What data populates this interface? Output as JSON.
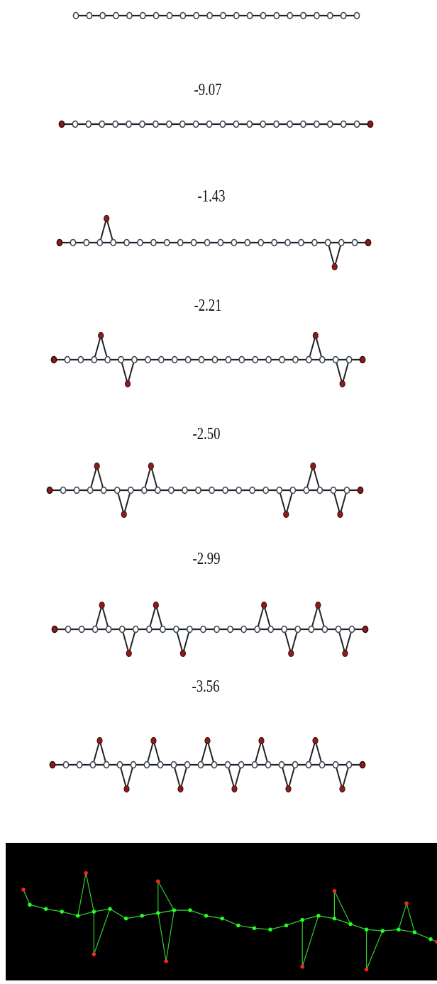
{
  "colors": {
    "chain_line": "#222222",
    "node_fill": "#ffffff",
    "node_stroke": "#3d4a5a",
    "defect_node": "#8a1c1c",
    "sim_background": "#000000",
    "sim_line": "#33cc33",
    "sim_node_green": "#22ff22",
    "sim_node_red": "#ff2222"
  },
  "chains": [
    {
      "energy": "",
      "nodes": 22,
      "red_ends": false,
      "defects_up": [],
      "defects_down": []
    },
    {
      "energy": "-9.07",
      "nodes": 24,
      "red_ends": true,
      "defects_up": [],
      "defects_down": []
    },
    {
      "energy": "-1.43",
      "nodes": 24,
      "red_ends": true,
      "defects_up": [
        3
      ],
      "defects_down": [
        20
      ]
    },
    {
      "energy": "-2.21",
      "nodes": 24,
      "red_ends": true,
      "defects_up": [
        3,
        19
      ],
      "defects_down": [
        5,
        21
      ]
    },
    {
      "energy": "-2.50",
      "nodes": 24,
      "red_ends": true,
      "defects_up": [
        3,
        7,
        19
      ],
      "defects_down": [
        5,
        17,
        21
      ]
    },
    {
      "energy": "-2.99",
      "nodes": 24,
      "red_ends": true,
      "defects_up": [
        3,
        7,
        15,
        19
      ],
      "defects_down": [
        5,
        9,
        17,
        21
      ]
    },
    {
      "energy": "-3.56",
      "nodes": 24,
      "red_ends": true,
      "defects_up": [
        3,
        7,
        11,
        15,
        19
      ],
      "defects_down": [
        5,
        9,
        13,
        17,
        21
      ]
    }
  ],
  "simulation": {
    "chain": [
      [
        0,
        0.55
      ],
      [
        1,
        0.52
      ],
      [
        2,
        0.5
      ],
      [
        3,
        0.47
      ],
      [
        4,
        0.5
      ],
      [
        5,
        0.52
      ],
      [
        6,
        0.45
      ],
      [
        7,
        0.47
      ],
      [
        8,
        0.49
      ],
      [
        9,
        0.51
      ],
      [
        10,
        0.51
      ],
      [
        11,
        0.47
      ],
      [
        12,
        0.45
      ],
      [
        13,
        0.4
      ],
      [
        14,
        0.38
      ],
      [
        15,
        0.37
      ],
      [
        16,
        0.4
      ],
      [
        17,
        0.44
      ],
      [
        18,
        0.47
      ],
      [
        19,
        0.45
      ],
      [
        20,
        0.41
      ],
      [
        21,
        0.37
      ],
      [
        22,
        0.36
      ],
      [
        23,
        0.37
      ],
      [
        24,
        0.35
      ],
      [
        25,
        0.3
      ]
    ],
    "defects_up": [
      [
        3.5,
        0.78
      ],
      [
        8.0,
        0.72
      ],
      [
        19.0,
        0.65
      ],
      [
        23.5,
        0.56
      ]
    ],
    "defects_down": [
      [
        4.0,
        0.19
      ],
      [
        8.5,
        0.14
      ],
      [
        17.0,
        0.1
      ],
      [
        21.0,
        0.08
      ]
    ],
    "end_red": [
      [
        -0.4,
        0.66
      ],
      [
        25.4,
        0.28
      ]
    ]
  }
}
